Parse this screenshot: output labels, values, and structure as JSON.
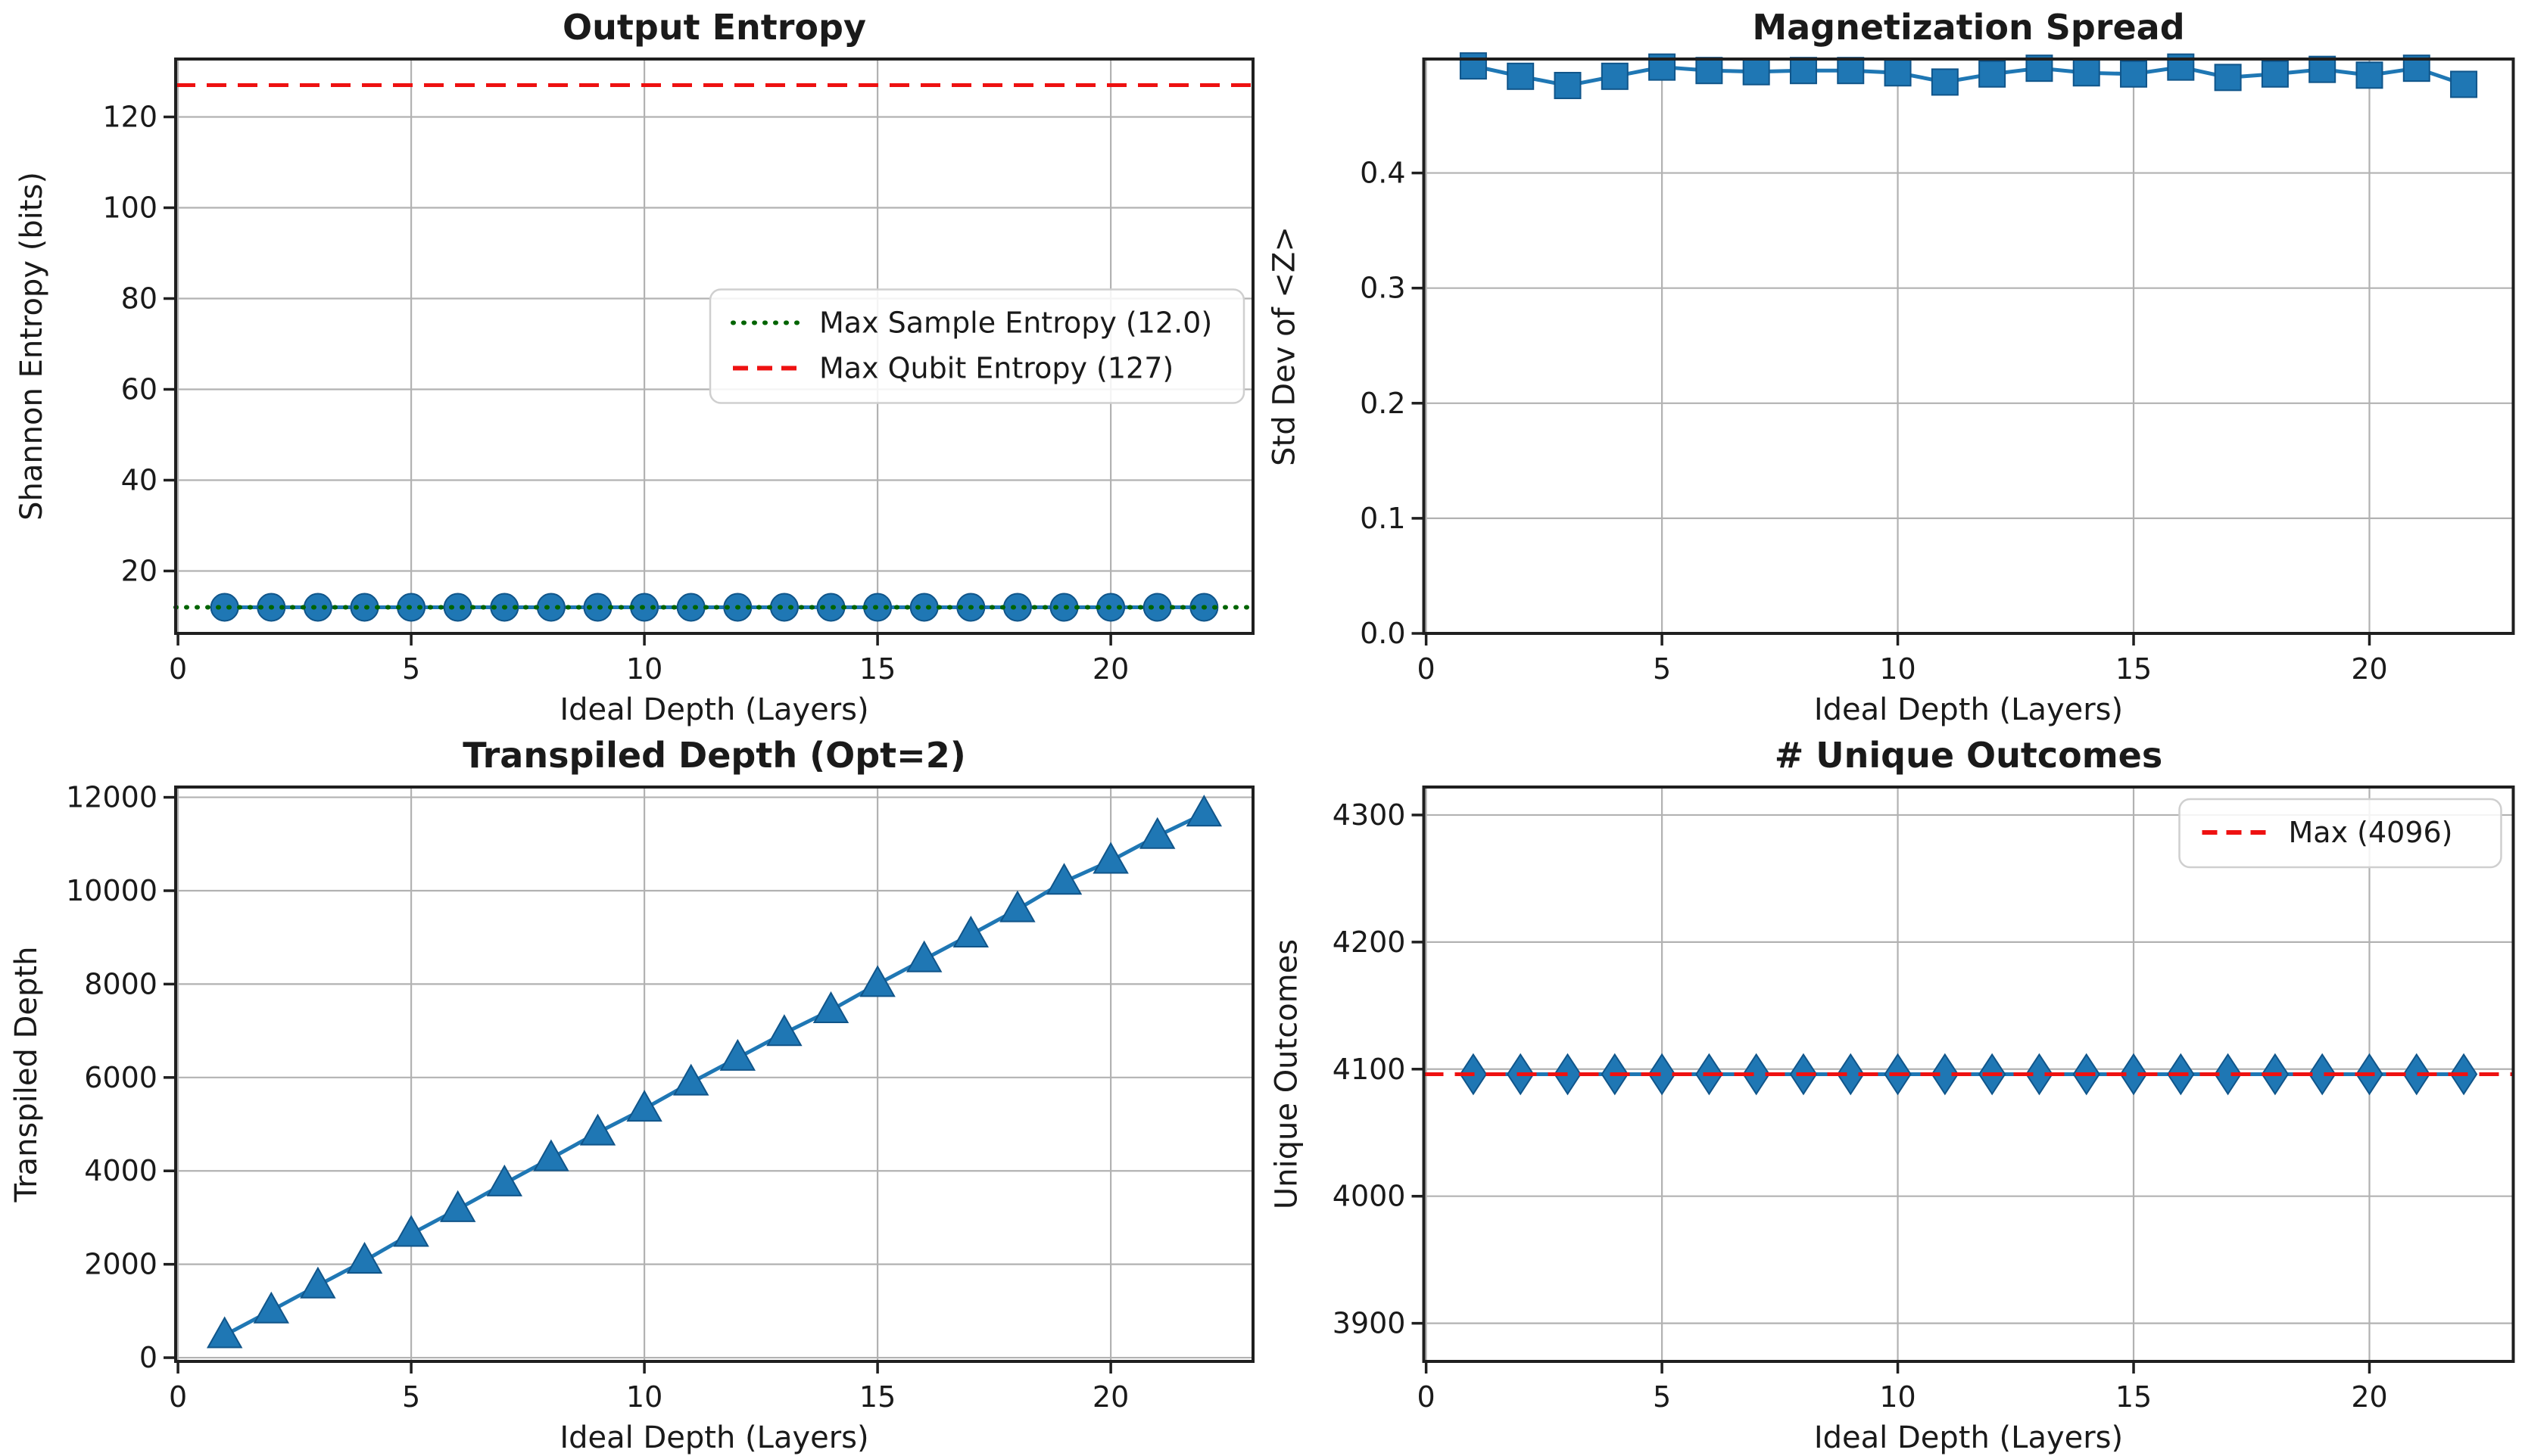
{
  "figure": {
    "background": "#ffffff",
    "grid_color": "#b2b2b2",
    "spine_color": "#1f1f1f",
    "series_blue": "#1f77b4",
    "ref_red": "#ee1111",
    "ref_green": "#006400"
  },
  "chart_data": [
    {
      "type": "line",
      "title": "Output Entropy",
      "xlabel": "Ideal Depth (Layers)",
      "ylabel": "Shannon Entropy (bits)",
      "x": [
        1,
        2,
        3,
        4,
        5,
        6,
        7,
        8,
        9,
        10,
        11,
        12,
        13,
        14,
        15,
        16,
        17,
        18,
        19,
        20,
        21,
        22
      ],
      "series": [
        {
          "name": "Shannon Entropy",
          "marker": "circle",
          "color": "#1f77b4",
          "values": [
            12.0,
            12.0,
            12.0,
            12.0,
            12.0,
            12.0,
            12.0,
            12.0,
            12.0,
            12.0,
            12.0,
            12.0,
            12.0,
            12.0,
            12.0,
            12.0,
            12.0,
            12.0,
            12.0,
            12.0,
            12.0,
            12.0
          ]
        }
      ],
      "ref_lines": [
        {
          "label": "Max Sample Entropy (12.0)",
          "y": 12.0,
          "color": "#006400",
          "style": "dotted"
        },
        {
          "label": "Max Qubit Entropy (127)",
          "y": 127,
          "color": "#ee1111",
          "style": "dashed"
        }
      ],
      "legend": {
        "show": true,
        "position": "right-center",
        "entries": [
          "Max Sample Entropy (12.0)",
          "Max Qubit Entropy (127)"
        ]
      },
      "xlim": [
        -0.05,
        23.05
      ],
      "ylim": [
        6.25,
        132.75
      ],
      "xticks": [
        0,
        5,
        10,
        15,
        20
      ],
      "xtick_labels": [
        "0",
        "5",
        "10",
        "15",
        "20"
      ],
      "yticks": [
        20,
        40,
        60,
        80,
        100,
        120
      ],
      "ytick_labels": [
        "20",
        "40",
        "60",
        "80",
        "100",
        "120"
      ],
      "grid": true
    },
    {
      "type": "line",
      "title": "Magnetization Spread",
      "xlabel": "Ideal Depth (Layers)",
      "ylabel": "Std Dev of <Z>",
      "x": [
        1,
        2,
        3,
        4,
        5,
        6,
        7,
        8,
        9,
        10,
        11,
        12,
        13,
        14,
        15,
        16,
        17,
        18,
        19,
        20,
        21,
        22
      ],
      "series": [
        {
          "name": "Std Dev of <Z>",
          "marker": "square",
          "color": "#1f77b4",
          "values": [
            0.493,
            0.484,
            0.476,
            0.484,
            0.492,
            0.489,
            0.488,
            0.489,
            0.489,
            0.487,
            0.479,
            0.486,
            0.491,
            0.487,
            0.486,
            0.492,
            0.483,
            0.486,
            0.49,
            0.485,
            0.491,
            0.477
          ]
        }
      ],
      "ref_lines": [],
      "legend": {
        "show": false,
        "position": "",
        "entries": []
      },
      "xlim": [
        -0.05,
        23.05
      ],
      "ylim": [
        0,
        0.499
      ],
      "xticks": [
        0,
        5,
        10,
        15,
        20
      ],
      "xtick_labels": [
        "0",
        "5",
        "10",
        "15",
        "20"
      ],
      "yticks": [
        0.0,
        0.1,
        0.2,
        0.3,
        0.4
      ],
      "ytick_labels": [
        "0.0",
        "0.1",
        "0.2",
        "0.3",
        "0.4"
      ],
      "grid": true
    },
    {
      "type": "line",
      "title": "Transpiled Depth (Opt=2)",
      "xlabel": "Ideal Depth (Layers)",
      "ylabel": "Transpiled Depth",
      "x": [
        1,
        2,
        3,
        4,
        5,
        6,
        7,
        8,
        9,
        10,
        11,
        12,
        13,
        14,
        15,
        16,
        17,
        18,
        19,
        20,
        21,
        22
      ],
      "series": [
        {
          "name": "Transpiled Depth",
          "marker": "triangle-up",
          "color": "#1f77b4",
          "values": [
            480,
            1010,
            1545,
            2075,
            2650,
            3180,
            3730,
            4270,
            4820,
            5330,
            5890,
            6420,
            6950,
            7440,
            8000,
            8530,
            9060,
            9600,
            10190,
            10640,
            11170,
            11650
          ]
        }
      ],
      "ref_lines": [],
      "legend": {
        "show": false,
        "position": "",
        "entries": []
      },
      "xlim": [
        -0.05,
        23.05
      ],
      "ylim": [
        -80,
        12220
      ],
      "xticks": [
        0,
        5,
        10,
        15,
        20
      ],
      "xtick_labels": [
        "0",
        "5",
        "10",
        "15",
        "20"
      ],
      "yticks": [
        0,
        2000,
        4000,
        6000,
        8000,
        10000,
        12000
      ],
      "ytick_labels": [
        "0",
        "2000",
        "4000",
        "6000",
        "8000",
        "10000",
        "12000"
      ],
      "grid": true
    },
    {
      "type": "line",
      "title": "# Unique Outcomes",
      "xlabel": "Ideal Depth (Layers)",
      "ylabel": "Unique Outcomes",
      "x": [
        1,
        2,
        3,
        4,
        5,
        6,
        7,
        8,
        9,
        10,
        11,
        12,
        13,
        14,
        15,
        16,
        17,
        18,
        19,
        20,
        21,
        22
      ],
      "series": [
        {
          "name": "Unique Outcomes",
          "marker": "diamond",
          "color": "#1f77b4",
          "values": [
            4096,
            4096,
            4096,
            4096,
            4096,
            4096,
            4096,
            4096,
            4096,
            4096,
            4096,
            4096,
            4096,
            4096,
            4096,
            4096,
            4096,
            4096,
            4096,
            4096,
            4096,
            4096
          ]
        }
      ],
      "ref_lines": [
        {
          "label": "Max (4096)",
          "y": 4096,
          "color": "#ee1111",
          "style": "dashed"
        }
      ],
      "legend": {
        "show": true,
        "position": "top-right",
        "entries": [
          "Max (4096)"
        ]
      },
      "xlim": [
        -0.05,
        23.05
      ],
      "ylim": [
        3870,
        4322
      ],
      "xticks": [
        0,
        5,
        10,
        15,
        20
      ],
      "xtick_labels": [
        "0",
        "5",
        "10",
        "15",
        "20"
      ],
      "yticks": [
        3900,
        4000,
        4100,
        4200,
        4300
      ],
      "ytick_labels": [
        "3900",
        "4000",
        "4100",
        "4200",
        "4300"
      ],
      "grid": true
    }
  ]
}
